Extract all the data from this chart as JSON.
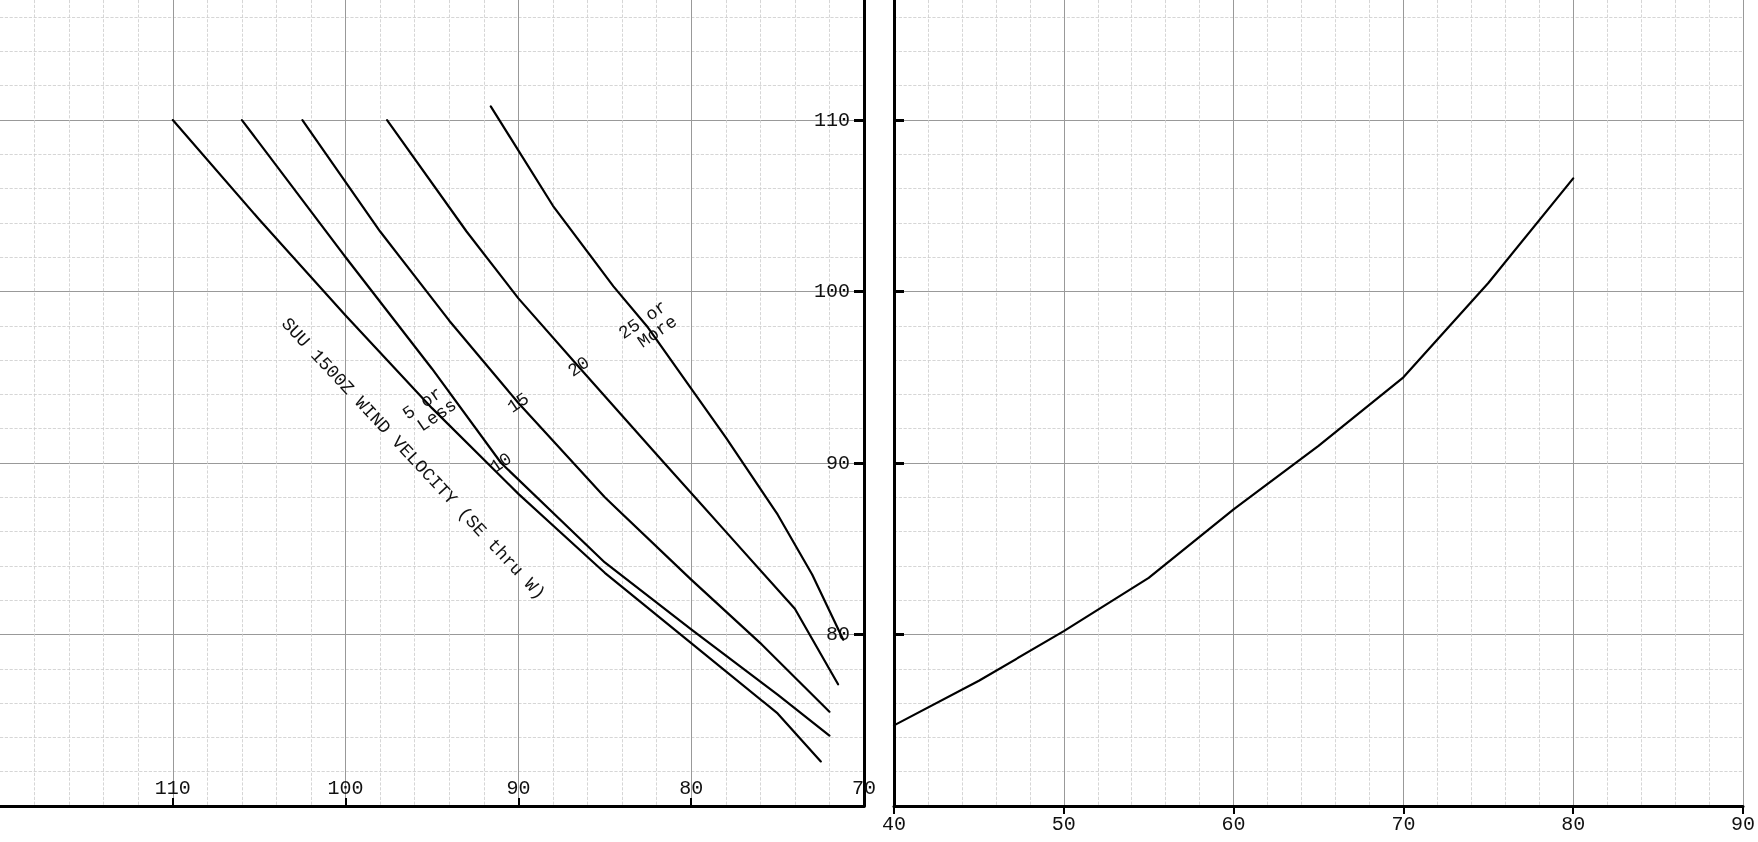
{
  "chart_data": [
    {
      "type": "line",
      "xlim": [
        120,
        70
      ],
      "xticks": [
        110,
        100,
        90,
        80,
        70
      ],
      "ylim": [
        70,
        117
      ],
      "yticks": [
        80,
        90,
        100,
        110
      ],
      "grid": true,
      "marker": "none",
      "line_style": "solid",
      "annotations": [
        "SUU 1500Z WIND VELOCITY (SE thru W)"
      ],
      "series": [
        {
          "name": "5 or Less",
          "color": "#000000",
          "x": [
            110,
            105,
            100,
            95,
            90,
            85,
            80,
            75,
            72.5
          ],
          "values": [
            110,
            104.2,
            98.6,
            93.2,
            88.2,
            83.6,
            79.5,
            75.4,
            72.6
          ]
        },
        {
          "name": "10",
          "color": "#000000",
          "x": [
            106,
            100,
            95,
            91,
            85,
            80,
            75,
            72
          ],
          "values": [
            110,
            102,
            95.5,
            90,
            84.2,
            80.3,
            76.5,
            74.1
          ]
        },
        {
          "name": "15",
          "color": "#000000",
          "x": [
            102.5,
            98,
            94,
            90,
            85,
            80,
            76,
            72
          ],
          "values": [
            110,
            103.5,
            98.3,
            93.5,
            88,
            83.2,
            79.5,
            75.5
          ]
        },
        {
          "name": "20",
          "color": "#000000",
          "x": [
            97.6,
            93,
            90,
            86.5,
            82,
            78,
            74,
            71.5
          ],
          "values": [
            110,
            103.5,
            99.6,
            95.6,
            90.5,
            86,
            81.5,
            77.1
          ]
        },
        {
          "name": "25 or More",
          "color": "#000000",
          "x": [
            91.6,
            88,
            84.5,
            82.5,
            78,
            75,
            73,
            71.2
          ],
          "values": [
            110.8,
            105,
            100.3,
            97.9,
            91.5,
            87,
            83.5,
            79.7
          ]
        }
      ]
    },
    {
      "type": "line",
      "xlim": [
        40,
        90
      ],
      "xticks": [
        40,
        50,
        60,
        70,
        80,
        90
      ],
      "ylim": [
        70,
        117
      ],
      "yticks": [
        80,
        90,
        100,
        110
      ],
      "tick_labels": "x",
      "grid": true,
      "marker": "none",
      "line_style": "solid",
      "series": [
        {
          "color": "#000000",
          "x": [
            40,
            45,
            50,
            55,
            60,
            65,
            70,
            75,
            80
          ],
          "values": [
            74.7,
            77.3,
            80.2,
            83.3,
            87.3,
            91,
            95,
            100.5,
            106.6
          ]
        }
      ]
    }
  ]
}
